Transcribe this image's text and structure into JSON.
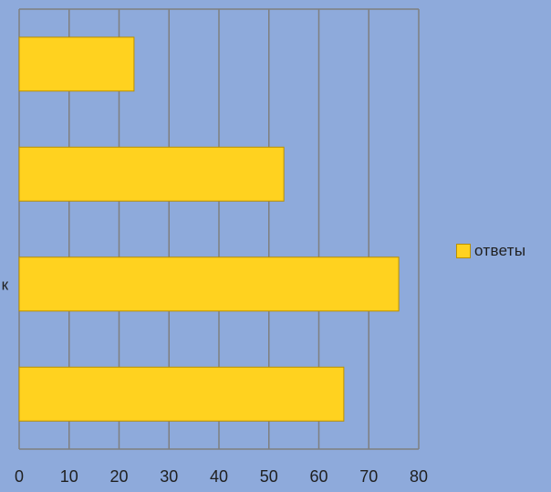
{
  "chart_data": {
    "type": "bar",
    "orientation": "horizontal",
    "categories": [
      "",
      "",
      "…к",
      ""
    ],
    "series": [
      {
        "name": "ответы",
        "values": [
          23,
          53,
          76,
          65
        ]
      }
    ],
    "xlim": [
      0,
      80
    ],
    "xticks": [
      "0",
      "10",
      "20",
      "30",
      "40",
      "50",
      "60",
      "70",
      "80"
    ],
    "grid": true,
    "legend_position": "right",
    "colors": {
      "background": "#8eaadb",
      "bar": "#ffd21f",
      "bar_border": "#b98f00",
      "grid": "#7f7f7f",
      "text": "#1f1f1f"
    }
  }
}
